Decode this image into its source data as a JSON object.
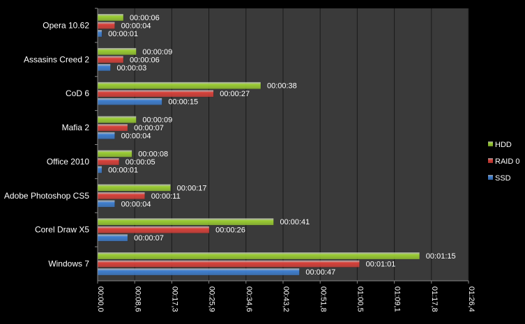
{
  "chart_data": {
    "type": "bar",
    "orientation": "horizontal",
    "title": "",
    "xlabel": "",
    "ylabel": "",
    "categories": [
      "Opera 10.62",
      "Assasins Creed 2",
      "CoD 6",
      "Mafia 2",
      "Office 2010",
      "Adobe Photoshop CS5",
      "Corel Draw X5",
      "Windows 7"
    ],
    "series": [
      {
        "name": "HDD",
        "color": "#9ACD32",
        "values": [
          6,
          9,
          38,
          9,
          8,
          17,
          41,
          75
        ],
        "labels": [
          "00:00:06",
          "00:00:09",
          "00:00:38",
          "00:00:09",
          "00:00:08",
          "00:00:17",
          "00:00:41",
          "00:01:15"
        ]
      },
      {
        "name": "RAID 0",
        "color": "#D9413A",
        "values": [
          4,
          6,
          27,
          7,
          5,
          11,
          26,
          61
        ],
        "labels": [
          "00:00:04",
          "00:00:06",
          "00:00:27",
          "00:00:07",
          "00:00:05",
          "00:00:11",
          "00:00:26",
          "00:01:01"
        ]
      },
      {
        "name": "SSD",
        "color": "#3F7FD0",
        "values": [
          1,
          3,
          15,
          4,
          1,
          4,
          7,
          47
        ],
        "labels": [
          "00:00:01",
          "00:00:03",
          "00:00:15",
          "00:00:04",
          "00:00:01",
          "00:00:04",
          "00:00:07",
          "00:00:47"
        ]
      }
    ],
    "xlim": [
      0,
      86.4
    ],
    "x_ticks": [
      0,
      8.64,
      17.28,
      25.92,
      34.56,
      43.2,
      51.84,
      60.48,
      69.12,
      77.76,
      86.4
    ],
    "x_tick_labels": [
      "00:00,0",
      "00:08,6",
      "00:17,3",
      "00:25,9",
      "00:34,6",
      "00:43,2",
      "00:51,8",
      "01:00,5",
      "01:09,1",
      "01:17,8",
      "01:26,4"
    ],
    "x_unit": "seconds",
    "grid": true,
    "legend_position": "right",
    "legend_order": [
      "HDD",
      "RAID 0",
      "SSD"
    ],
    "background": "#000000",
    "plot_background": "#3A3A3A"
  }
}
